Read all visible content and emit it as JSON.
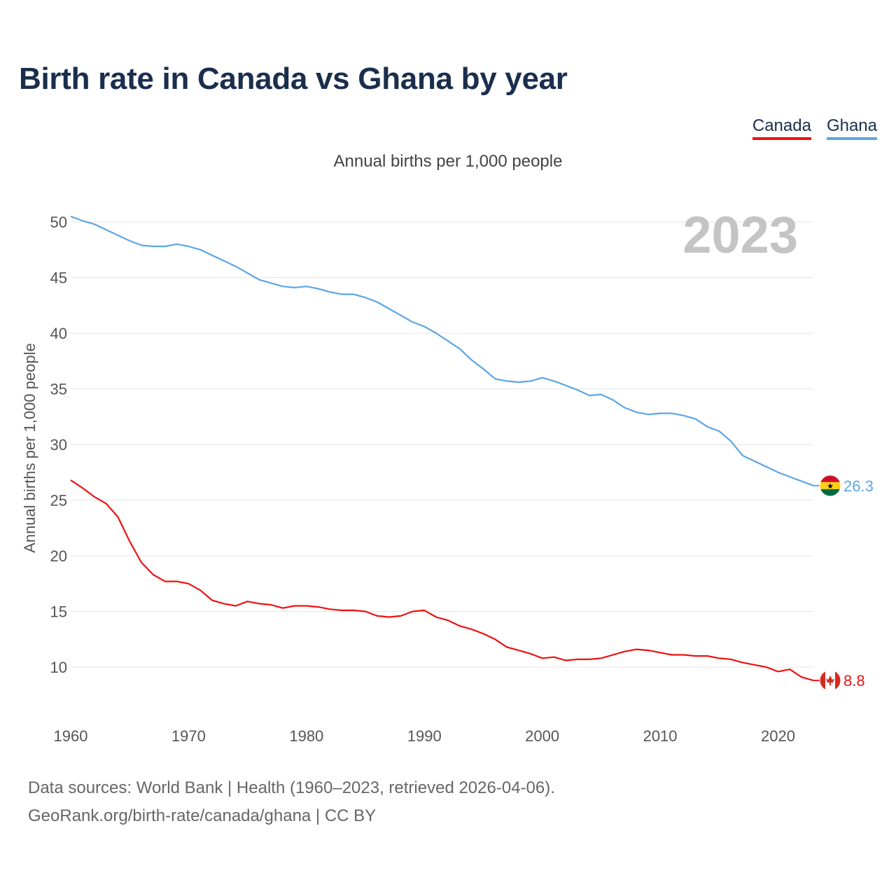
{
  "title": "Birth rate in Canada vs Ghana by year",
  "subtitle": "Annual births per 1,000 people",
  "legend": [
    {
      "label": "Canada",
      "color": "#ee1111"
    },
    {
      "label": "Ghana",
      "color": "#5ba6e6"
    }
  ],
  "chart_data": {
    "type": "line",
    "year_label": "2023",
    "ylabel": "Annual births per 1,000 people",
    "xlabel": "",
    "xlim": [
      1960,
      2023
    ],
    "ylim": [
      6,
      51
    ],
    "yticks": [
      10,
      15,
      20,
      25,
      30,
      35,
      40,
      45,
      50
    ],
    "xticks": [
      1960,
      1970,
      1980,
      1990,
      2000,
      2010,
      2020
    ],
    "x": [
      1960,
      1961,
      1962,
      1963,
      1964,
      1965,
      1966,
      1967,
      1968,
      1969,
      1970,
      1971,
      1972,
      1973,
      1974,
      1975,
      1976,
      1977,
      1978,
      1979,
      1980,
      1981,
      1982,
      1983,
      1984,
      1985,
      1986,
      1987,
      1988,
      1989,
      1990,
      1991,
      1992,
      1993,
      1994,
      1995,
      1996,
      1997,
      1998,
      1999,
      2000,
      2001,
      2002,
      2003,
      2004,
      2005,
      2006,
      2007,
      2008,
      2009,
      2010,
      2011,
      2012,
      2013,
      2014,
      2015,
      2016,
      2017,
      2018,
      2019,
      2020,
      2021,
      2022,
      2023
    ],
    "series": [
      {
        "name": "Canada",
        "color": "#ee1111",
        "end_label": "8.8",
        "flag": "canada",
        "values": [
          26.8,
          26.1,
          25.3,
          24.7,
          23.5,
          21.3,
          19.4,
          18.3,
          17.7,
          17.7,
          17.5,
          16.9,
          16.0,
          15.7,
          15.5,
          15.9,
          15.7,
          15.6,
          15.3,
          15.5,
          15.5,
          15.4,
          15.2,
          15.1,
          15.1,
          15.0,
          14.6,
          14.5,
          14.6,
          15.0,
          15.1,
          14.5,
          14.2,
          13.7,
          13.4,
          13.0,
          12.5,
          11.8,
          11.5,
          11.2,
          10.8,
          10.9,
          10.6,
          10.7,
          10.7,
          10.8,
          11.1,
          11.4,
          11.6,
          11.5,
          11.3,
          11.1,
          11.1,
          11.0,
          11.0,
          10.8,
          10.7,
          10.4,
          10.2,
          10.0,
          9.6,
          9.8,
          9.1,
          8.8
        ]
      },
      {
        "name": "Ghana",
        "color": "#5ba6e6",
        "end_label": "26.3",
        "flag": "ghana",
        "values": [
          50.5,
          50.1,
          49.8,
          49.3,
          48.8,
          48.3,
          47.9,
          47.8,
          47.8,
          48.0,
          47.8,
          47.5,
          47.0,
          46.5,
          46.0,
          45.4,
          44.8,
          44.5,
          44.2,
          44.1,
          44.2,
          44.0,
          43.7,
          43.5,
          43.5,
          43.2,
          42.8,
          42.2,
          41.6,
          41.0,
          40.6,
          40.0,
          39.3,
          38.6,
          37.6,
          36.8,
          35.9,
          35.7,
          35.6,
          35.7,
          36.0,
          35.7,
          35.3,
          34.9,
          34.4,
          34.5,
          34.0,
          33.3,
          32.9,
          32.7,
          32.8,
          32.8,
          32.6,
          32.3,
          31.6,
          31.2,
          30.3,
          29.0,
          28.5,
          28.0,
          27.5,
          27.1,
          26.7,
          26.3
        ]
      }
    ]
  },
  "source": {
    "line1": "Data sources: World Bank | Health (1960–2023, retrieved 2026-04-06).",
    "line2": "GeoRank.org/birth-rate/canada/ghana | CC BY"
  }
}
